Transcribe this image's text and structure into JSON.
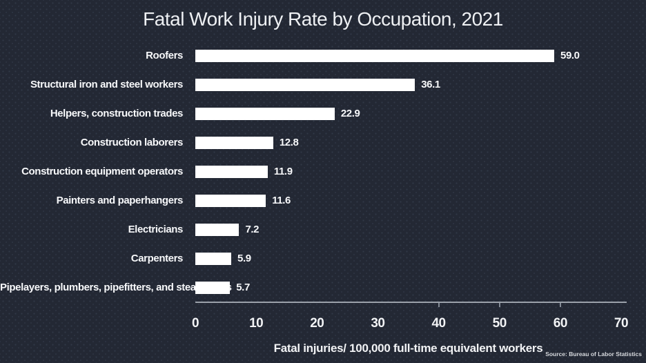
{
  "title": "Fatal Work Injury Rate by Occupation, 2021",
  "source": "Source: Bureau of Labor Statistics",
  "chart_data": {
    "type": "bar",
    "orientation": "horizontal",
    "title": "Fatal Work Injury Rate by Occupation, 2021",
    "categories": [
      "Roofers",
      "Structural iron and steel workers",
      "Helpers, construction trades",
      "Construction laborers",
      "Construction equipment operators",
      "Painters and paperhangers",
      "Electricians",
      "Carpenters",
      "Pipelayers, plumbers, pipefitters, and steamfitters"
    ],
    "values": [
      59.0,
      36.1,
      22.9,
      12.8,
      11.9,
      11.6,
      7.2,
      5.9,
      5.7
    ],
    "value_labels": [
      "59.0",
      "36.1",
      "22.9",
      "12.8",
      "11.9",
      "11.6",
      "7.2",
      "5.9",
      "5.7"
    ],
    "xlabel": "Fatal injuries/ 100,000 full-time equivalent workers",
    "ylabel": "",
    "xlim": [
      0,
      70
    ],
    "xtick_labels": [
      "0",
      "10",
      "20",
      "30",
      "40",
      "50",
      "60",
      "70"
    ],
    "xtick_values": [
      0,
      10,
      20,
      30,
      40,
      50,
      60,
      70
    ],
    "visible_tick_marks": [
      40,
      50,
      60
    ],
    "grid": false,
    "legend": false,
    "bar_color": "#ffffff",
    "background_color": "#232834",
    "text_color": "#f2f3f5",
    "axis_color": "#9ba1aa"
  }
}
